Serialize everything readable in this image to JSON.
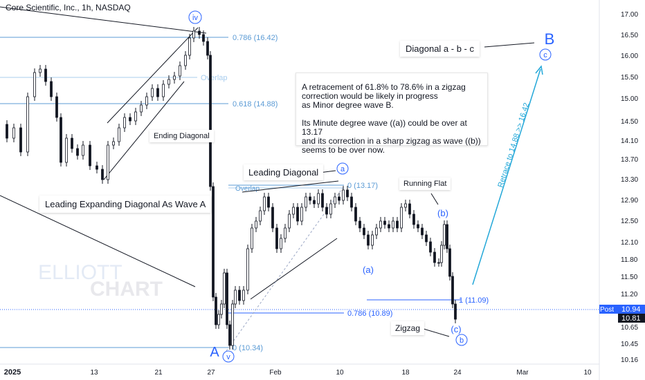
{
  "title": "Core Scientific, Inc., 1h, NASDAQ",
  "watermark": {
    "line1": "ELLIOTT",
    "line2": "CHART"
  },
  "colors": {
    "candle": "#131722",
    "level_blue": "#2962ff",
    "level_light": "#5b9bd5",
    "channel": "#131722",
    "retrace_arrow": "#22a7d8",
    "wave_label": "#2962ff",
    "price_tag": "#2962ff"
  },
  "chart_data": {
    "type": "candlestick",
    "ylim": [
      10.05,
      17.1
    ],
    "y_ticks": [
      "17.00",
      "16.50",
      "16.00",
      "15.50",
      "15.00",
      "14.50",
      "14.10",
      "13.70",
      "13.30",
      "12.90",
      "12.50",
      "12.10",
      "11.80",
      "11.50",
      "11.20",
      "10.90",
      "10.65",
      "10.45",
      "10.16"
    ],
    "x_ticks": [
      "2025",
      "13",
      "21",
      "27",
      "Feb",
      "10",
      "18",
      "24",
      "Mar",
      "10"
    ],
    "last_price": {
      "label": "Post",
      "value": "10.94",
      "prev": "10.81"
    },
    "fib_levels": [
      {
        "label": "0.786 (16.42)",
        "value": 16.42
      },
      {
        "label": "Overlap",
        "value": 15.48
      },
      {
        "label": "0.618 (14.88)",
        "value": 14.88
      },
      {
        "label": "0 (13.17)",
        "value": 13.17
      },
      {
        "label": "1 (11.09)",
        "value": 11.09
      },
      {
        "label": "0.786 (10.89)",
        "value": 10.89
      },
      {
        "label": "0 (10.34)",
        "value": 10.34
      }
    ],
    "overlap_labels": [
      "Overlap",
      "Overlap"
    ],
    "wave_labels": [
      "iv",
      "A",
      "v",
      "a",
      "(a)",
      "(b)",
      "(c)",
      "b",
      "B",
      "c"
    ],
    "annotations": {
      "ending_diagonal": "Ending Diagonal",
      "leading_diagonal": "Leading Diagonal",
      "running_flat": "Running Flat",
      "zigzag": "Zigzag",
      "leading_expanding": "Leading Expanding Diagonal As Wave A",
      "diagonal_abc": "Diagonal a - b - c",
      "retrace": "Retrace to 14.88 >> 16.42"
    },
    "note": "A retracement of 61.8% to 78.6% in a zigzag\ncorrection would be likely in progress\nas Minor degree wave B.\n\nIts Minute degree wave ((a)) could be over at 13.17\nand its correction in a sharp zigzag as wave ((b))\nseems to be over now."
  }
}
